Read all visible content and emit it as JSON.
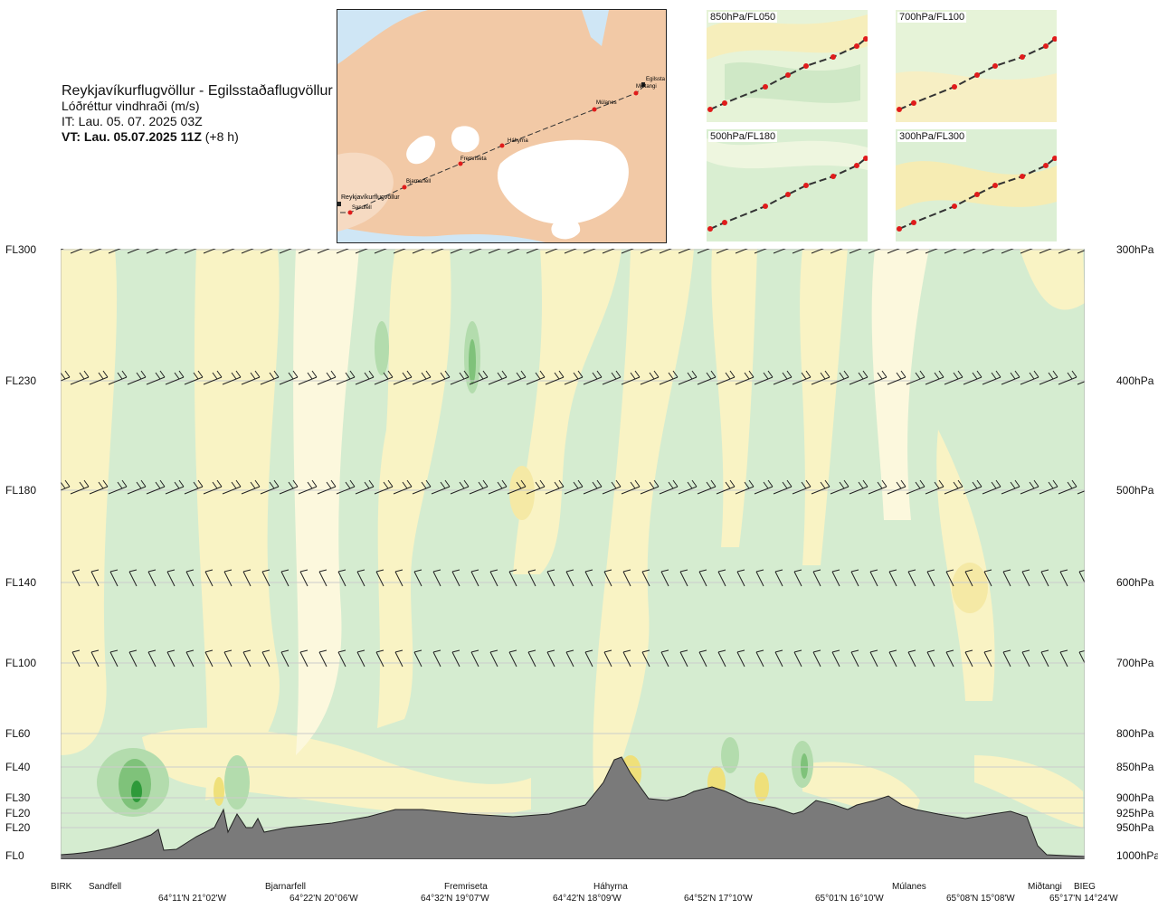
{
  "title": {
    "line1": "Reykjavíkurflugvöllur - Egilsstaðaflugvöllur",
    "line2": "Lóðréttur vindhraði (m/s)",
    "line3": "IT: Lau. 05. 07. 2025 03Z",
    "line4_bold": "VT: Lau. 05.07.2025 11Z",
    "line4_rest": "(+8 h)"
  },
  "map_inset": {
    "waypoints": [
      "Reykjavíkurflugvöllur",
      "Sandfell",
      "Bjarnarfell",
      "Fremriseta",
      "Háhyrna",
      "Múlanes",
      "Miðtangi",
      "Egilssta"
    ]
  },
  "mini_maps": [
    {
      "label": "850hPa/FL050"
    },
    {
      "label": "700hPa/FL100"
    },
    {
      "label": "500hPa/FL180"
    },
    {
      "label": "300hPa/FL300"
    }
  ],
  "levels": [
    {
      "fl": "FL300",
      "hpa": "300hPa"
    },
    {
      "fl": "FL230",
      "hpa": "400hPa"
    },
    {
      "fl": "FL180",
      "hpa": "500hPa"
    },
    {
      "fl": "FL140",
      "hpa": "600hPa"
    },
    {
      "fl": "FL100",
      "hpa": "700hPa"
    },
    {
      "fl": "FL60",
      "hpa": "800hPa"
    },
    {
      "fl": "FL40",
      "hpa": "850hPa"
    },
    {
      "fl": "FL30",
      "hpa": "900hPa"
    },
    {
      "fl": "FL20",
      "hpa": "925hPa"
    },
    {
      "fl": "FL20",
      "hpa": "950hPa"
    },
    {
      "fl": "FL0",
      "hpa": "1000hPa"
    }
  ],
  "waypoint_labels": [
    "BIRK",
    "Sandfell",
    "Bjarnarfell",
    "Fremriseta",
    "Háhyrna",
    "Múlanes",
    "Miðtangi",
    "BIEG"
  ],
  "coord_labels": [
    "64°11'N 21°02'W",
    "64°22'N 20°06'W",
    "64°32'N 19°07'W",
    "64°42'N 18°09'W",
    "64°52'N 17°10'W",
    "65°01'N 16°10'W",
    "65°08'N 15°08'W",
    "65°17'N 14°24'W"
  ],
  "colors": {
    "sea": "#cfe6f5",
    "land": "#f2c9a6",
    "glacier": "#ffffff",
    "terrain": "#7a7a7a",
    "pale_green": "#d5ecd0",
    "mid_green": "#b3dcad",
    "green": "#7fc27a",
    "dark_green": "#2e9a3a",
    "pale_yellow": "#f9f3c4",
    "yellow": "#efe07a",
    "route": "#333333",
    "waypoint": "#e01b1b"
  }
}
